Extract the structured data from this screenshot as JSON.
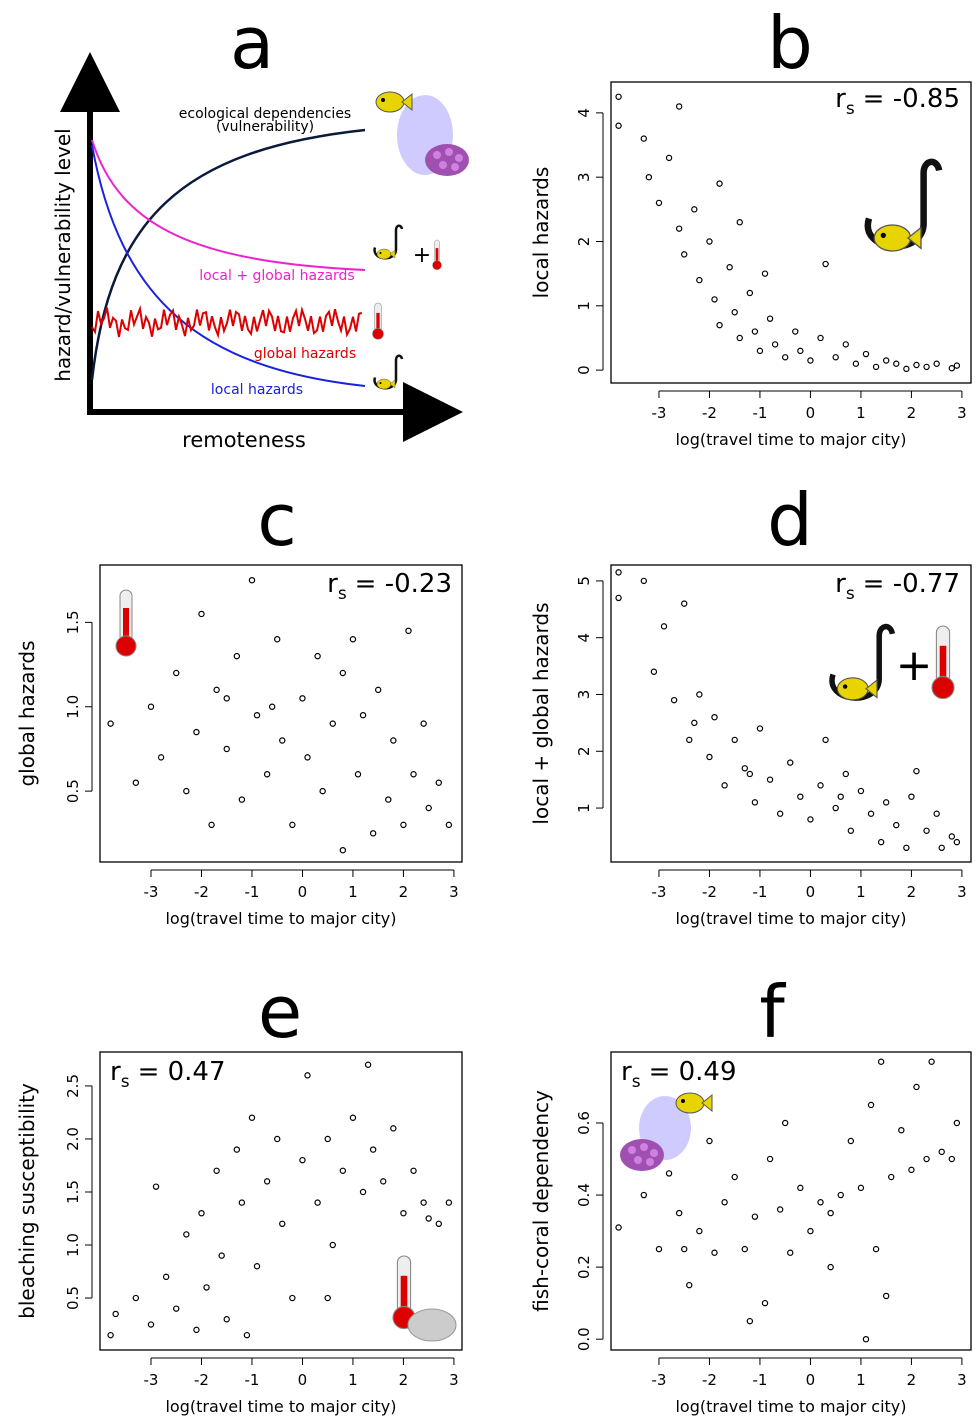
{
  "panel_a": {
    "letter": "a",
    "ylabel": "hazard/vulnerability level",
    "xlabel": "remoteness",
    "curve_labels": [
      "ecological dependencies",
      "(vulnerability)",
      "local + global hazards",
      "global hazards",
      "local hazards"
    ],
    "plus": "+"
  },
  "chart_data": [
    {
      "type": "scatter",
      "panel_label": "b",
      "stat_symbol": "r",
      "stat_subscript": "s",
      "stat_value": "= -0.85",
      "xlabel": "log(travel time to major city)",
      "ylabel": "local hazards",
      "xlim": [
        -3.95,
        3.18
      ],
      "ylim": [
        -0.2,
        4.48
      ],
      "xticks": [
        -3,
        -2,
        -1,
        0,
        1,
        2,
        3
      ],
      "yticks": [
        0,
        1,
        2,
        3,
        4
      ],
      "x": [
        -3.8,
        -3.8,
        -3.3,
        -3.2,
        -3.0,
        -2.8,
        -2.6,
        -2.5,
        -2.3,
        -2.2,
        -2.0,
        -1.9,
        -1.8,
        -1.6,
        -1.5,
        -1.4,
        -1.2,
        -1.1,
        -1.0,
        -0.8,
        -0.7,
        -0.5,
        -0.3,
        -0.2,
        0,
        0.2,
        0.3,
        0.5,
        0.7,
        0.9,
        1.1,
        1.3,
        1.5,
        1.7,
        1.9,
        2.1,
        2.3,
        2.5,
        2.8,
        2.9,
        -2.6,
        -1.8,
        -1.4,
        -0.9
      ],
      "values": [
        4.25,
        3.8,
        3.6,
        3.0,
        2.6,
        3.3,
        2.2,
        1.8,
        2.5,
        1.4,
        2.0,
        1.1,
        0.7,
        1.6,
        0.9,
        0.5,
        1.2,
        0.6,
        0.3,
        0.8,
        0.4,
        0.2,
        0.6,
        0.3,
        0.15,
        0.5,
        1.65,
        0.2,
        0.4,
        0.1,
        0.25,
        0.05,
        0.15,
        0.1,
        0.02,
        0.08,
        0.05,
        0.1,
        0.03,
        0.07,
        4.1,
        2.9,
        2.3,
        1.5
      ]
    },
    {
      "type": "scatter",
      "panel_label": "c",
      "stat_symbol": "r",
      "stat_subscript": "s",
      "stat_value": "= -0.23",
      "xlabel": "log(travel time to major city)",
      "ylabel": "global hazards",
      "xlim": [
        -4.01,
        3.16
      ],
      "ylim": [
        0.08,
        1.84
      ],
      "xticks": [
        -3,
        -2,
        -1,
        0,
        1,
        2,
        3
      ],
      "yticks": [
        0.5,
        {
          "value": 1,
          "label": "1.0"
        },
        1.5
      ],
      "x": [
        -3.8,
        -3.3,
        -3.0,
        -2.8,
        -2.5,
        -2.3,
        -2.1,
        -2.0,
        -1.8,
        -1.7,
        -1.5,
        -1.3,
        -1.2,
        -1.0,
        -0.9,
        -0.7,
        -0.5,
        -0.4,
        -0.2,
        0,
        0.1,
        0.3,
        0.4,
        0.6,
        0.8,
        1.0,
        1.1,
        1.2,
        1.4,
        1.5,
        1.7,
        1.8,
        2.0,
        2.1,
        2.2,
        2.4,
        2.5,
        2.7,
        2.9,
        0.8,
        -1.5,
        -0.6
      ],
      "values": [
        0.9,
        0.55,
        1.0,
        0.7,
        1.2,
        0.5,
        0.85,
        1.55,
        0.3,
        1.1,
        0.75,
        1.3,
        0.45,
        1.75,
        0.95,
        0.6,
        1.4,
        0.8,
        0.3,
        1.05,
        0.7,
        1.3,
        0.5,
        0.9,
        1.2,
        1.4,
        0.6,
        0.95,
        0.25,
        1.1,
        0.45,
        0.8,
        0.3,
        1.45,
        0.6,
        0.9,
        0.4,
        0.55,
        0.3,
        0.15,
        1.05,
        1.0
      ]
    },
    {
      "type": "scatter",
      "panel_label": "d",
      "stat_symbol": "r",
      "stat_subscript": "s",
      "stat_value": "= -0.77",
      "plus": "+",
      "xlabel": "log(travel time to major city)",
      "ylabel": "local + global hazards",
      "xlim": [
        -3.95,
        3.18
      ],
      "ylim": [
        0.05,
        5.28
      ],
      "xticks": [
        -3,
        -2,
        -1,
        0,
        1,
        2,
        3
      ],
      "yticks": [
        1,
        2,
        3,
        4,
        5
      ],
      "x": [
        -3.8,
        -3.8,
        -3.3,
        -3.1,
        -2.9,
        -2.7,
        -2.5,
        -2.4,
        -2.2,
        -2.0,
        -1.9,
        -1.7,
        -1.5,
        -1.3,
        -1.1,
        -1.0,
        -0.8,
        -0.6,
        -0.4,
        -0.2,
        0,
        0.2,
        0.3,
        0.5,
        0.7,
        0.8,
        1.0,
        1.2,
        1.4,
        1.5,
        1.7,
        1.9,
        2.0,
        2.1,
        2.3,
        2.5,
        2.6,
        2.8,
        2.9,
        -2.3,
        -1.2,
        0.6
      ],
      "values": [
        5.15,
        4.7,
        5.0,
        3.4,
        4.2,
        2.9,
        4.6,
        2.2,
        3.0,
        1.9,
        2.6,
        1.4,
        2.2,
        1.7,
        1.1,
        2.4,
        1.5,
        0.9,
        1.8,
        1.2,
        0.8,
        1.4,
        2.2,
        1.0,
        1.6,
        0.6,
        1.3,
        0.9,
        0.4,
        1.1,
        0.7,
        0.3,
        1.2,
        1.65,
        0.6,
        0.9,
        0.3,
        0.5,
        0.4,
        2.5,
        1.6,
        1.2
      ]
    },
    {
      "type": "scatter",
      "panel_label": "e",
      "stat_symbol": "r",
      "stat_subscript": "s",
      "stat_value": "= 0.47",
      "xlabel": "log(travel time to major city)",
      "ylabel": "bleaching susceptibility",
      "xlim": [
        -4.01,
        3.16
      ],
      "ylim": [
        0.01,
        2.82
      ],
      "xticks": [
        -3,
        -2,
        -1,
        0,
        1,
        2,
        3
      ],
      "yticks": [
        0.5,
        {
          "value": 1,
          "label": "1.0"
        },
        1.5,
        {
          "value": 2,
          "label": "2.0"
        },
        2.5
      ],
      "x": [
        -3.8,
        -3.7,
        -3.3,
        -3.0,
        -2.9,
        -2.7,
        -2.5,
        -2.3,
        -2.1,
        -2.0,
        -1.9,
        -1.7,
        -1.6,
        -1.5,
        -1.3,
        -1.2,
        -1.0,
        -0.9,
        -0.7,
        -0.5,
        -0.4,
        -0.2,
        0,
        0.1,
        0.3,
        0.5,
        0.6,
        0.8,
        1.0,
        1.2,
        1.3,
        1.4,
        1.6,
        1.8,
        2.0,
        2.2,
        2.4,
        2.5,
        2.7,
        2.9,
        0.5,
        -1.1
      ],
      "values": [
        0.15,
        0.35,
        0.5,
        0.25,
        1.55,
        0.7,
        0.4,
        1.1,
        0.2,
        1.3,
        0.6,
        1.7,
        0.9,
        0.3,
        1.9,
        1.4,
        2.2,
        0.8,
        1.6,
        2.0,
        1.2,
        0.5,
        1.8,
        2.6,
        1.4,
        2.0,
        1.0,
        1.7,
        2.2,
        1.5,
        2.7,
        1.9,
        1.6,
        2.1,
        1.3,
        1.7,
        1.4,
        1.25,
        1.2,
        1.4,
        0.5,
        0.15
      ]
    },
    {
      "type": "scatter",
      "panel_label": "f",
      "stat_symbol": "r",
      "stat_subscript": "s",
      "stat_value": "= 0.49",
      "xlabel": "log(travel time to major city)",
      "ylabel": "fish-coral dependency",
      "xlim": [
        -3.95,
        3.18
      ],
      "ylim": [
        -0.03,
        0.797
      ],
      "xticks": [
        -3,
        -2,
        -1,
        0,
        1,
        2,
        3
      ],
      "yticks": [
        {
          "value": 0,
          "label": "0.0"
        },
        0.2,
        0.4,
        0.6
      ],
      "x": [
        -3.8,
        -3.3,
        -3.0,
        -2.8,
        -2.6,
        -2.4,
        -2.2,
        -2.0,
        -1.9,
        -1.7,
        -1.5,
        -1.3,
        -1.1,
        -0.9,
        -0.8,
        -0.6,
        -0.4,
        -0.2,
        0,
        0.2,
        0.4,
        0.6,
        0.8,
        1.0,
        1.1,
        1.2,
        1.3,
        1.4,
        1.5,
        1.6,
        1.8,
        2.0,
        2.1,
        2.3,
        2.4,
        2.6,
        2.8,
        2.9,
        -1.2,
        -2.5,
        0.4,
        -0.5
      ],
      "values": [
        0.31,
        0.4,
        0.25,
        0.46,
        0.35,
        0.15,
        0.3,
        0.55,
        0.24,
        0.38,
        0.45,
        0.25,
        0.34,
        0.1,
        0.5,
        0.36,
        0.24,
        0.42,
        0.3,
        0.38,
        0.2,
        0.4,
        0.55,
        0.42,
        0.0,
        0.65,
        0.25,
        0.77,
        0.12,
        0.45,
        0.58,
        0.47,
        0.7,
        0.5,
        0.77,
        0.52,
        0.5,
        0.6,
        0.05,
        0.25,
        0.35,
        0.6
      ]
    }
  ]
}
